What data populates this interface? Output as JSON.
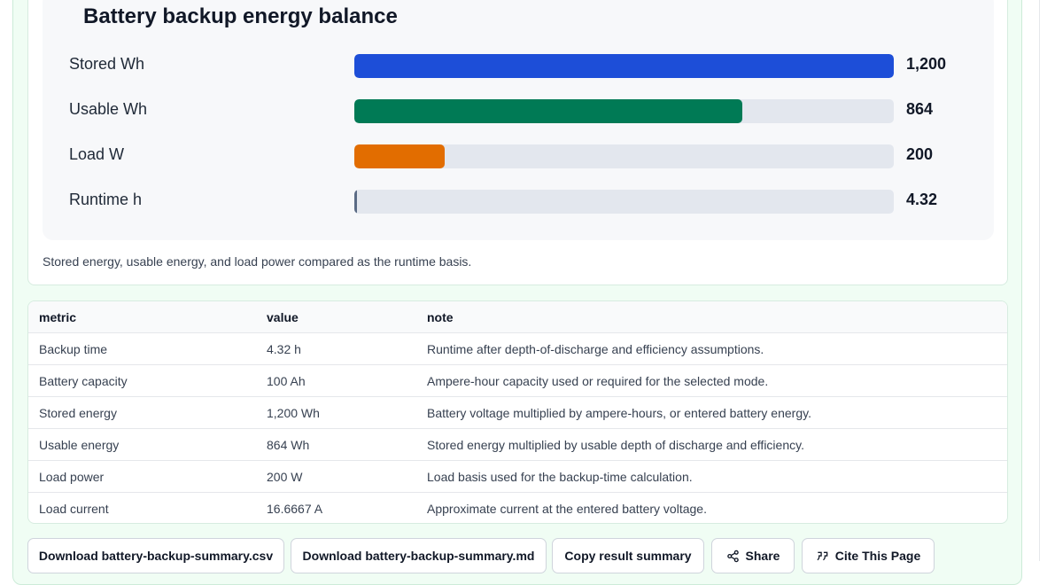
{
  "chart": {
    "title": "Battery backup energy balance",
    "caption": "Stored energy, usable energy, and load power compared as the runtime basis."
  },
  "chart_data": {
    "type": "bar",
    "orientation": "horizontal",
    "title": "Battery backup energy balance",
    "categories": [
      "Stored Wh",
      "Usable Wh",
      "Load W",
      "Runtime h"
    ],
    "values": [
      1200,
      864,
      200,
      4.32
    ],
    "value_labels": [
      "1,200",
      "864",
      "200",
      "4.32"
    ],
    "colors": [
      "#1d4ed8",
      "#007a55",
      "#e26d00",
      "#5b6b85"
    ],
    "xlim": [
      0,
      1200
    ],
    "grid": false,
    "legend": "none"
  },
  "table": {
    "headers": [
      "metric",
      "value",
      "note"
    ],
    "rows": [
      [
        "Backup time",
        "4.32 h",
        "Runtime after depth-of-discharge and efficiency assumptions."
      ],
      [
        "Battery capacity",
        "100 Ah",
        "Ampere-hour capacity used or required for the selected mode."
      ],
      [
        "Stored energy",
        "1,200 Wh",
        "Battery voltage multiplied by ampere-hours, or entered battery energy."
      ],
      [
        "Usable energy",
        "864 Wh",
        "Stored energy multiplied by usable depth of discharge and efficiency."
      ],
      [
        "Load power",
        "200 W",
        "Load basis used for the backup-time calculation."
      ],
      [
        "Load current",
        "16.6667 A",
        "Approximate current at the entered battery voltage."
      ]
    ]
  },
  "actions": {
    "download_csv": "Download battery-backup-summary.csv",
    "download_md": "Download battery-backup-summary.md",
    "copy_summary": "Copy result summary",
    "share": "Share",
    "cite": "Cite This Page",
    "share_icon": "share-icon",
    "cite_icon": "quote-icon"
  }
}
